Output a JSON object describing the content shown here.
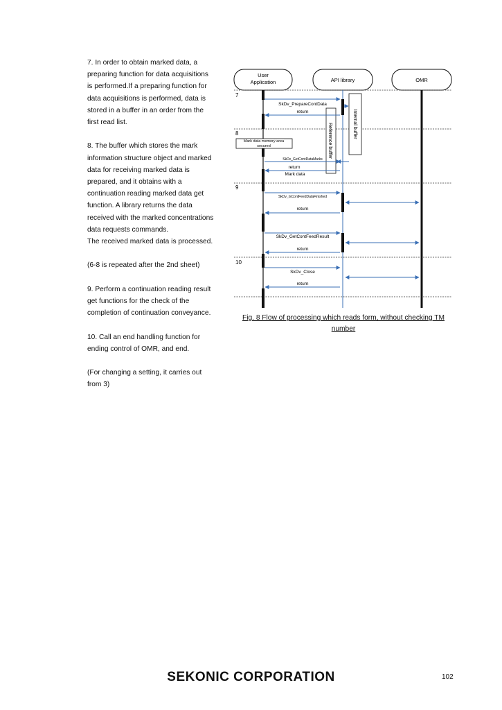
{
  "paragraphs": {
    "p7": "7. In order to obtain marked data, a\npreparing function for data acquisitions\nis performed.If a preparing function for\ndata acquisitions is performed, data is\nstored in a buffer in an order from the\nfirst read list.",
    "p8": "8. The buffer which stores the mark\ninformation structure object and marked\ndata for receiving marked data is\nprepared, and it obtains with a\ncontinuation reading marked data get\nfunction. A library returns the data\nreceived with the marked concentrations\ndata requests commands.",
    "p8b": "The received marked data is processed.",
    "p_repeat": "(6-8 is repeated after the 2nd sheet)",
    "p9": "9. Perform a continuation reading result\nget functions for the check of the\ncompletion of continuation conveyance.",
    "p10": "10. Call an end handling function for\nending control of OMR, and end.",
    "p_setting": "(For changing a setting, it carries out\nfrom 3)"
  },
  "diagram": {
    "actors": {
      "user": "User\nApplication",
      "api": "API library",
      "omr": "OMR"
    },
    "steps": [
      "7",
      "8",
      "9",
      "10"
    ],
    "messages": {
      "prepare": "SkDv_PrepareContData",
      "return1": "return",
      "memory": "Mark data memory area\nsecured",
      "getmarks": "SkDv_GetContDataMarks",
      "return2": "return",
      "markdata": "Mark data",
      "isfinished": "SkDv_IsContFeedDataFinished",
      "return3": "return",
      "feedresult": "SkDv_GetContFeedResult",
      "return4": "return",
      "close": "SkDv_Close",
      "return5": "return"
    },
    "buffers": {
      "internal": "Internal buffer",
      "reference": "Reference buffer"
    },
    "colors": {
      "arrow": "#3a6fb5",
      "lifeline": "#111111"
    }
  },
  "caption": "Fig. 8 Flow of processing which reads form, without checking TM\nnumber",
  "footer": {
    "company": "SEKONIC CORPORATION",
    "page": "102"
  }
}
